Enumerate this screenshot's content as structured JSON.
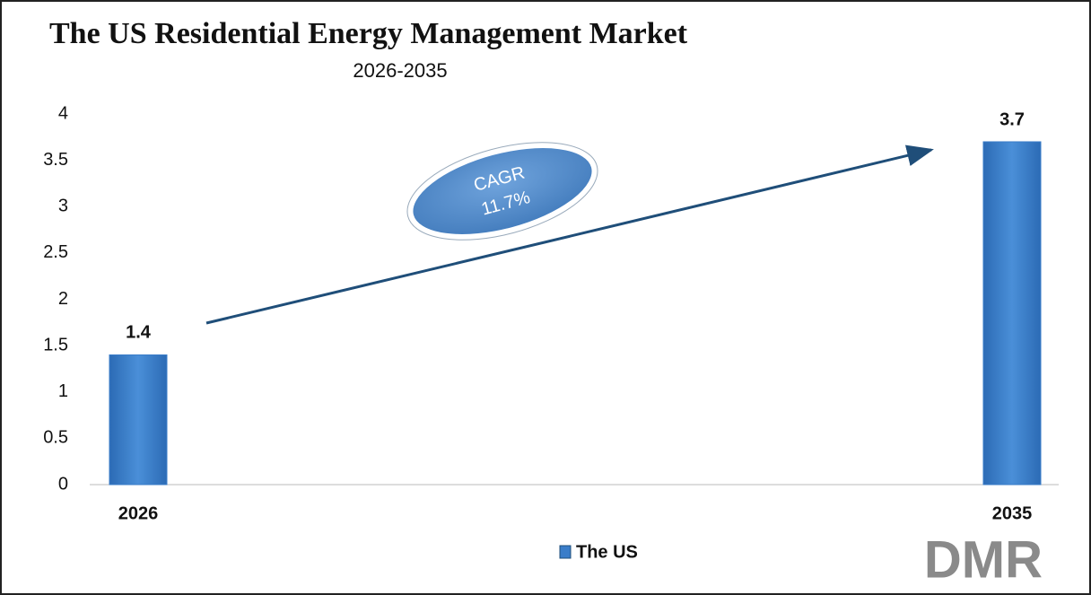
{
  "chart_data": {
    "type": "bar",
    "title": "The US Residential Energy Management Market",
    "subtitle": "2026-2035",
    "categories": [
      "2026",
      "2035"
    ],
    "series": [
      {
        "name": "The US",
        "color": "#3a7dc9",
        "values": [
          1.4,
          3.7
        ]
      }
    ],
    "ylim": [
      0,
      4
    ],
    "yticks": [
      0,
      0.5,
      1,
      1.5,
      2,
      2.5,
      3,
      3.5,
      4
    ],
    "grid": false,
    "annotation": {
      "title": "CAGR",
      "value": "11.7%"
    },
    "legend": "bottom"
  },
  "logo": "DMR"
}
